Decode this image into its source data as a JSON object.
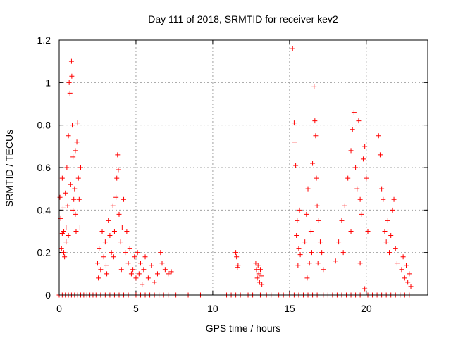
{
  "chart_data": {
    "type": "scatter",
    "title": "Day 111 of 2018, SRMTID for receiver kev2",
    "xlabel": "GPS time / hours",
    "ylabel": "SRMTID / TECUs",
    "xlim": [
      0,
      24
    ],
    "ylim": [
      0,
      1.2
    ],
    "x_ticks": [
      0,
      5,
      10,
      15,
      20
    ],
    "y_ticks": [
      0,
      0.2,
      0.4,
      0.6,
      0.8,
      1,
      1.2
    ],
    "x_tick_labels": [
      "0",
      "5",
      "10",
      "15",
      "20"
    ],
    "y_tick_labels": [
      "0",
      "0.2",
      "0.4",
      "0.6",
      "0.8",
      "1",
      "1.2"
    ],
    "grid": true,
    "marker": "+",
    "color": "#ff0000",
    "series": [
      {
        "name": "SRMTID",
        "points": [
          [
            0.05,
            0.46
          ],
          [
            0.1,
            0.36
          ],
          [
            0.15,
            0.22
          ],
          [
            0.2,
            0.55
          ],
          [
            0.25,
            0.41
          ],
          [
            0.3,
            0.3
          ],
          [
            0.35,
            0.18
          ],
          [
            0.4,
            0.48
          ],
          [
            0.45,
            0.25
          ],
          [
            0.5,
            0.6
          ],
          [
            0.55,
            0.42
          ],
          [
            0.6,
            0.75
          ],
          [
            0.65,
            1.0
          ],
          [
            0.7,
            0.95
          ],
          [
            0.75,
            0.52
          ],
          [
            0.8,
            1.1
          ],
          [
            0.82,
            1.03
          ],
          [
            0.85,
            0.8
          ],
          [
            0.9,
            0.65
          ],
          [
            0.95,
            0.45
          ],
          [
            1.0,
            0.5
          ],
          [
            1.05,
            0.38
          ],
          [
            1.1,
            0.3
          ],
          [
            1.15,
            0.72
          ],
          [
            1.2,
            0.81
          ],
          [
            1.25,
            0.55
          ],
          [
            1.3,
            0.45
          ],
          [
            1.35,
            0.32
          ],
          [
            1.4,
            0.6
          ],
          [
            0.3,
            0.2
          ],
          [
            0.45,
            0.32
          ],
          [
            0.6,
            0.28
          ],
          [
            0.9,
            0.4
          ],
          [
            1.05,
            0.68
          ],
          [
            0.2,
            0.29
          ],
          [
            2.5,
            0.15
          ],
          [
            2.6,
            0.22
          ],
          [
            2.7,
            0.12
          ],
          [
            2.8,
            0.3
          ],
          [
            2.9,
            0.18
          ],
          [
            3.0,
            0.25
          ],
          [
            3.1,
            0.1
          ],
          [
            3.2,
            0.35
          ],
          [
            3.3,
            0.28
          ],
          [
            3.4,
            0.2
          ],
          [
            3.5,
            0.42
          ],
          [
            3.6,
            0.3
          ],
          [
            3.7,
            0.46
          ],
          [
            3.75,
            0.55
          ],
          [
            3.8,
            0.66
          ],
          [
            3.85,
            0.59
          ],
          [
            3.9,
            0.38
          ],
          [
            4.0,
            0.25
          ],
          [
            4.1,
            0.32
          ],
          [
            4.2,
            0.45
          ],
          [
            4.3,
            0.2
          ],
          [
            4.4,
            0.3
          ],
          [
            4.5,
            0.15
          ],
          [
            4.6,
            0.22
          ],
          [
            4.7,
            0.1
          ],
          [
            2.55,
            0.08
          ],
          [
            3.05,
            0.14
          ],
          [
            3.55,
            0.18
          ],
          [
            4.05,
            0.12
          ],
          [
            4.8,
            0.12
          ],
          [
            4.9,
            0.18
          ],
          [
            5.0,
            0.08
          ],
          [
            5.1,
            0.2
          ],
          [
            5.2,
            0.1
          ],
          [
            5.3,
            0.15
          ],
          [
            5.4,
            0.05
          ],
          [
            5.5,
            0.12
          ],
          [
            5.6,
            0.18
          ],
          [
            5.8,
            0.08
          ],
          [
            6.0,
            0.14
          ],
          [
            6.2,
            0.06
          ],
          [
            6.4,
            0.1
          ],
          [
            6.6,
            0.2
          ],
          [
            6.7,
            0.15
          ],
          [
            6.9,
            0.12
          ],
          [
            7.1,
            0.1
          ],
          [
            7.3,
            0.11
          ],
          [
            11.5,
            0.2
          ],
          [
            11.55,
            0.18
          ],
          [
            11.6,
            0.13
          ],
          [
            11.65,
            0.14
          ],
          [
            12.8,
            0.15
          ],
          [
            12.85,
            0.12
          ],
          [
            12.9,
            0.08
          ],
          [
            12.95,
            0.14
          ],
          [
            13.0,
            0.1
          ],
          [
            13.05,
            0.06
          ],
          [
            13.1,
            0.12
          ],
          [
            13.15,
            0.09
          ],
          [
            13.2,
            0.05
          ],
          [
            15.2,
            1.16
          ],
          [
            15.3,
            0.81
          ],
          [
            15.35,
            0.72
          ],
          [
            15.4,
            0.61
          ],
          [
            15.45,
            0.28
          ],
          [
            15.5,
            0.35
          ],
          [
            15.55,
            0.14
          ],
          [
            15.6,
            0.22
          ],
          [
            15.65,
            0.4
          ],
          [
            15.7,
            0.19
          ],
          [
            16.0,
            0.25
          ],
          [
            16.1,
            0.38
          ],
          [
            16.2,
            0.5
          ],
          [
            16.3,
            0.15
          ],
          [
            16.4,
            0.3
          ],
          [
            16.5,
            0.62
          ],
          [
            16.6,
            0.98
          ],
          [
            16.65,
            0.82
          ],
          [
            16.7,
            0.75
          ],
          [
            16.75,
            0.55
          ],
          [
            16.8,
            0.42
          ],
          [
            16.9,
            0.35
          ],
          [
            17.0,
            0.25
          ],
          [
            17.1,
            0.2
          ],
          [
            17.2,
            0.12
          ],
          [
            16.15,
            0.08
          ],
          [
            16.45,
            0.2
          ],
          [
            16.85,
            0.15
          ],
          [
            18.0,
            0.16
          ],
          [
            18.2,
            0.25
          ],
          [
            18.4,
            0.35
          ],
          [
            18.6,
            0.42
          ],
          [
            18.8,
            0.55
          ],
          [
            19.0,
            0.68
          ],
          [
            19.1,
            0.78
          ],
          [
            19.2,
            0.86
          ],
          [
            19.3,
            0.6
          ],
          [
            19.4,
            0.5
          ],
          [
            19.5,
            0.82
          ],
          [
            19.6,
            0.45
          ],
          [
            19.7,
            0.38
          ],
          [
            19.8,
            0.64
          ],
          [
            19.9,
            0.7
          ],
          [
            20.0,
            0.55
          ],
          [
            20.1,
            0.3
          ],
          [
            18.5,
            0.2
          ],
          [
            19.0,
            0.3
          ],
          [
            19.6,
            0.15
          ],
          [
            19.9,
            0.03
          ],
          [
            20.8,
            0.75
          ],
          [
            20.9,
            0.66
          ],
          [
            21.0,
            0.5
          ],
          [
            21.1,
            0.45
          ],
          [
            21.2,
            0.3
          ],
          [
            21.3,
            0.25
          ],
          [
            21.4,
            0.35
          ],
          [
            21.5,
            0.2
          ],
          [
            21.6,
            0.28
          ],
          [
            21.7,
            0.4
          ],
          [
            21.8,
            0.45
          ],
          [
            21.9,
            0.22
          ],
          [
            22.0,
            0.15
          ],
          [
            22.3,
            0.12
          ],
          [
            22.4,
            0.18
          ],
          [
            22.5,
            0.08
          ],
          [
            22.6,
            0.14
          ],
          [
            22.7,
            0.06
          ],
          [
            22.8,
            0.1
          ],
          [
            22.9,
            0.04
          ],
          [
            0.0,
            0.0
          ],
          [
            0.2,
            0.0
          ],
          [
            0.4,
            0.0
          ],
          [
            0.6,
            0.0
          ],
          [
            0.8,
            0.0
          ],
          [
            1.0,
            0.0
          ],
          [
            1.2,
            0.0
          ],
          [
            1.4,
            0.0
          ],
          [
            1.6,
            0.0
          ],
          [
            1.8,
            0.0
          ],
          [
            2.0,
            0.0
          ],
          [
            2.2,
            0.0
          ],
          [
            2.4,
            0.0
          ],
          [
            2.7,
            0.0
          ],
          [
            3.0,
            0.0
          ],
          [
            3.3,
            0.0
          ],
          [
            3.6,
            0.0
          ],
          [
            3.9,
            0.0
          ],
          [
            4.2,
            0.0
          ],
          [
            4.5,
            0.0
          ],
          [
            5.0,
            0.0
          ],
          [
            5.3,
            0.0
          ],
          [
            5.6,
            0.0
          ],
          [
            5.9,
            0.0
          ],
          [
            6.2,
            0.0
          ],
          [
            6.5,
            0.0
          ],
          [
            6.8,
            0.0
          ],
          [
            7.1,
            0.0
          ],
          [
            7.6,
            0.0
          ],
          [
            8.4,
            0.0
          ],
          [
            9.2,
            0.0
          ],
          [
            10.9,
            0.0
          ],
          [
            11.2,
            0.0
          ],
          [
            11.5,
            0.0
          ],
          [
            11.8,
            0.0
          ],
          [
            12.3,
            0.0
          ],
          [
            12.6,
            0.0
          ],
          [
            13.1,
            0.0
          ],
          [
            13.5,
            0.0
          ],
          [
            13.8,
            0.0
          ],
          [
            14.3,
            0.0
          ],
          [
            14.6,
            0.0
          ],
          [
            15.0,
            0.0
          ],
          [
            15.3,
            0.0
          ],
          [
            15.6,
            0.0
          ],
          [
            15.9,
            0.0
          ],
          [
            16.2,
            0.0
          ],
          [
            16.5,
            0.0
          ],
          [
            16.8,
            0.0
          ],
          [
            17.2,
            0.0
          ],
          [
            17.5,
            0.0
          ],
          [
            17.8,
            0.0
          ],
          [
            18.1,
            0.0
          ],
          [
            18.4,
            0.0
          ],
          [
            18.7,
            0.0
          ],
          [
            19.0,
            0.0
          ],
          [
            19.3,
            0.0
          ],
          [
            19.6,
            0.0
          ],
          [
            20.1,
            0.0
          ],
          [
            20.4,
            0.0
          ],
          [
            20.7,
            0.0
          ],
          [
            21.0,
            0.0
          ],
          [
            21.3,
            0.0
          ],
          [
            21.6,
            0.0
          ],
          [
            21.9,
            0.0
          ],
          [
            22.2,
            0.0
          ],
          [
            22.5,
            0.0
          ],
          [
            22.8,
            0.0
          ]
        ]
      }
    ]
  }
}
